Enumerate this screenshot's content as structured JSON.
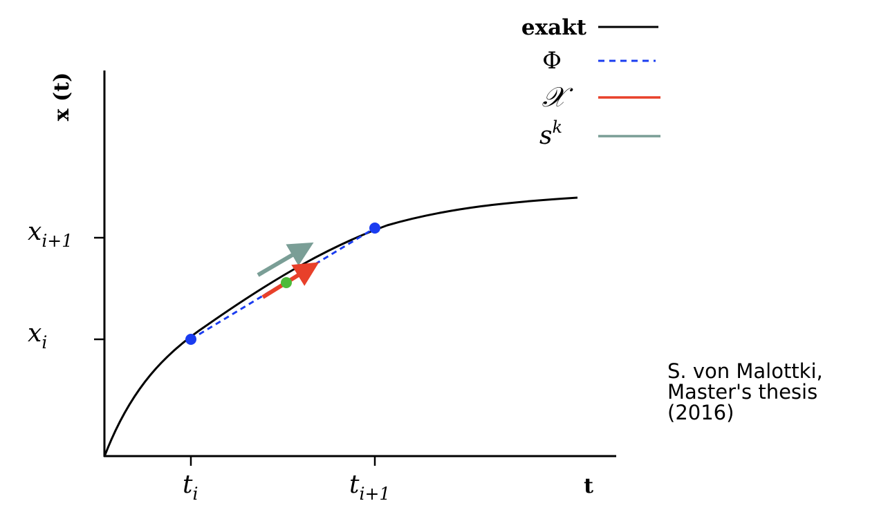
{
  "diagram": {
    "axes": {
      "ylabel": "x (t)",
      "xlabel": "t",
      "xticks": [
        {
          "main": "t",
          "sub": "i"
        },
        {
          "main": "t",
          "sub": "i+1"
        }
      ],
      "yticks": [
        {
          "main": "x",
          "sub": "i+1"
        },
        {
          "main": "x",
          "sub": "i"
        }
      ]
    },
    "legend": [
      {
        "label": "exakt",
        "color": "#000000",
        "style": "solid"
      },
      {
        "label": "Φ",
        "color": "#1a3cf0",
        "style": "dashed"
      },
      {
        "label": "𝒳",
        "color": "#e8402a",
        "style": "solid"
      },
      {
        "label": "s",
        "sup": "k",
        "color": "#7a9e96",
        "style": "solid"
      }
    ],
    "colors": {
      "exact": "#000000",
      "phi": "#1a3cf0",
      "chi": "#e8402a",
      "sk": "#7a9e96",
      "midpoint": "#4dbb3a"
    }
  },
  "credit": {
    "lines": [
      "S. von Malottki,",
      "Master's thesis",
      "(2016)"
    ]
  }
}
